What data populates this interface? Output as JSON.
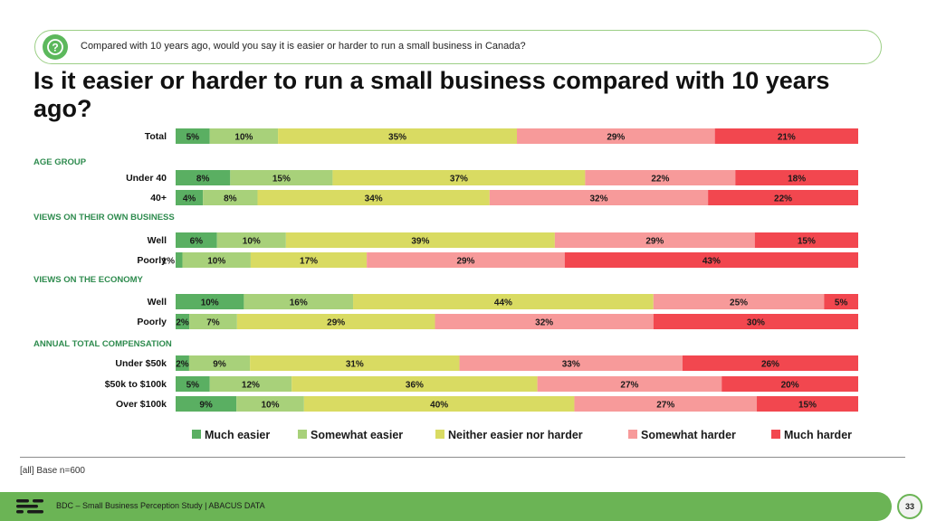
{
  "question": "Compared with 10 years ago, would you say it is easier or harder to run a small business in Canada?",
  "title": "Is it easier or harder to run a small business compared with 10 years ago?",
  "chart_data": {
    "type": "bar",
    "orientation": "horizontal-stacked-100",
    "series": [
      {
        "name": "Much easier",
        "color": "#5aaf62"
      },
      {
        "name": "Somewhat easier",
        "color": "#a8d17a"
      },
      {
        "name": "Neither easier nor harder",
        "color": "#d9db62"
      },
      {
        "name": "Somewhat harder",
        "color": "#f79a9a"
      },
      {
        "name": "Much harder",
        "color": "#f2474f"
      }
    ],
    "rows": [
      {
        "group": "",
        "label": "Total",
        "values": [
          5,
          10,
          35,
          29,
          21
        ]
      },
      {
        "group": "AGE GROUP",
        "label": "Under 40",
        "values": [
          8,
          15,
          37,
          22,
          18
        ]
      },
      {
        "group": "AGE GROUP",
        "label": "40+",
        "values": [
          4,
          8,
          34,
          32,
          22
        ]
      },
      {
        "group": "VIEWS ON THEIR OWN BUSINESS",
        "label": "Well",
        "values": [
          6,
          10,
          39,
          29,
          15
        ]
      },
      {
        "group": "VIEWS ON THEIR OWN BUSINESS",
        "label": "Poorly",
        "values": [
          1,
          10,
          17,
          29,
          43
        ]
      },
      {
        "group": "VIEWS ON THE ECONOMY",
        "label": "Well",
        "values": [
          10,
          16,
          44,
          25,
          5
        ]
      },
      {
        "group": "VIEWS ON THE ECONOMY",
        "label": "Poorly",
        "values": [
          2,
          7,
          29,
          32,
          30
        ]
      },
      {
        "group": "ANNUAL TOTAL COMPENSATION",
        "label": "Under $50k",
        "values": [
          2,
          9,
          31,
          33,
          26
        ]
      },
      {
        "group": "ANNUAL TOTAL COMPENSATION",
        "label": "$50k to $100k",
        "values": [
          5,
          12,
          36,
          27,
          20
        ]
      },
      {
        "group": "ANNUAL TOTAL COMPENSATION",
        "label": "Over $100k",
        "values": [
          9,
          10,
          40,
          27,
          15
        ]
      }
    ],
    "value_suffix": "%",
    "legend_position": "bottom"
  },
  "base_note": "[all] Base n=600",
  "footer_text": "BDC – Small Business Perception Study  |  ABACUS DATA",
  "page_number": "33"
}
